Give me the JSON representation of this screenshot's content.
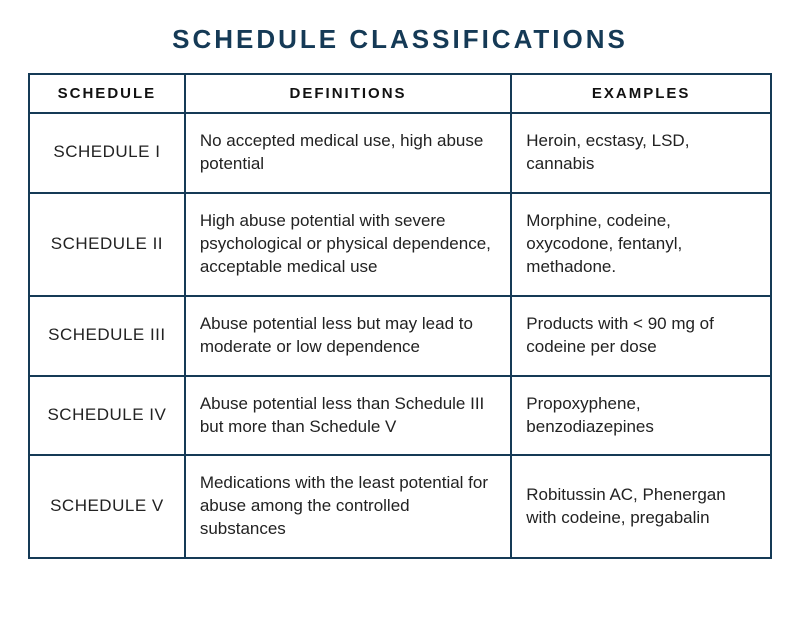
{
  "title": "SCHEDULE CLASSIFICATIONS",
  "table": {
    "type": "table",
    "border_color": "#153a56",
    "title_color": "#153a56",
    "text_color": "#222222",
    "background_color": "#ffffff",
    "title_fontsize": 26,
    "header_fontsize": 15,
    "cell_fontsize": 17,
    "column_widths_pct": [
      21,
      44,
      35
    ],
    "columns": {
      "schedule": "SCHEDULE",
      "definitions": "DEFINITIONS",
      "examples": "EXAMPLES"
    },
    "rows": [
      {
        "schedule": "SCHEDULE I",
        "definition": "No accepted medical use, high abuse potential",
        "examples": "Heroin, ecstasy, LSD, cannabis"
      },
      {
        "schedule": "SCHEDULE II",
        "definition": "High abuse potential with severe psychological or physical dependence, acceptable medical use",
        "examples": "Morphine, codeine, oxycodone, fentanyl, methadone."
      },
      {
        "schedule": "SCHEDULE III",
        "definition": "Abuse potential less but may lead to moderate or low dependence",
        "examples": "Products with < 90 mg of codeine per dose"
      },
      {
        "schedule": "SCHEDULE IV",
        "definition": "Abuse potential less than Schedule III but more than Schedule V",
        "examples": "Propoxyphene, benzodiazepines"
      },
      {
        "schedule": "SCHEDULE V",
        "definition": "Medications with the least potential for abuse among the controlled substances",
        "examples": "Robitussin AC, Phenergan with codeine, pregabalin"
      }
    ]
  }
}
